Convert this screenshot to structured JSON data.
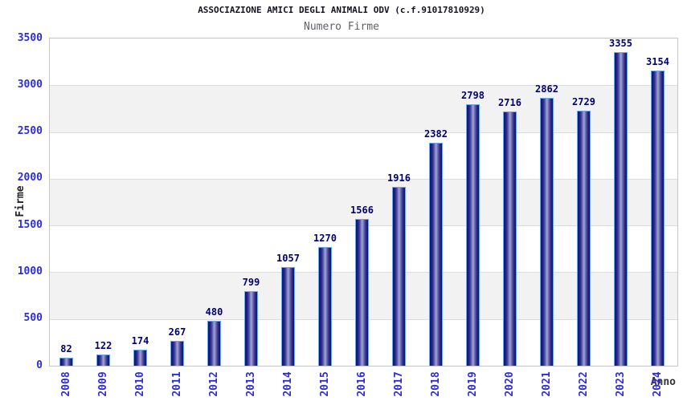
{
  "header": {
    "title": "ASSOCIAZIONE AMICI DEGLI ANIMALI ODV (c.f.91017810929)",
    "subtitle": "Numero Firme"
  },
  "chart_data": {
    "type": "bar",
    "title": "ASSOCIAZIONE AMICI DEGLI ANIMALI ODV (c.f.91017810929)",
    "subtitle": "Numero Firme",
    "xlabel": "Anno",
    "ylabel": "Firme",
    "categories": [
      "2008",
      "2009",
      "2010",
      "2011",
      "2012",
      "2013",
      "2014",
      "2015",
      "2016",
      "2017",
      "2018",
      "2019",
      "2020",
      "2021",
      "2022",
      "2023",
      "2024"
    ],
    "values": [
      82,
      122,
      174,
      267,
      480,
      799,
      1057,
      1270,
      1566,
      1916,
      2382,
      2798,
      2716,
      2862,
      2729,
      3355,
      3154
    ],
    "ylim": [
      0,
      3500
    ],
    "ytick_step": 500,
    "ytick_labels": [
      "0",
      "500",
      "1000",
      "1500",
      "2000",
      "2500",
      "3000",
      "3500"
    ],
    "grid": "alternating horizontal bands, light gridlines at each 500",
    "legend_position": "none",
    "colors": {
      "bar_dark": "#10106a",
      "bar_light": "#9b9bd4",
      "bar_border": "#6fa6ea",
      "axis_tick_label": "#2d2dd8",
      "value_label": "#00006e",
      "band_gray": "#f2f2f2",
      "band_white": "#ffffff",
      "grid_line": "#dcdcdc",
      "plot_border": "#c6c6c6",
      "title_color": "#141420",
      "subtitle_color": "#606068"
    }
  }
}
